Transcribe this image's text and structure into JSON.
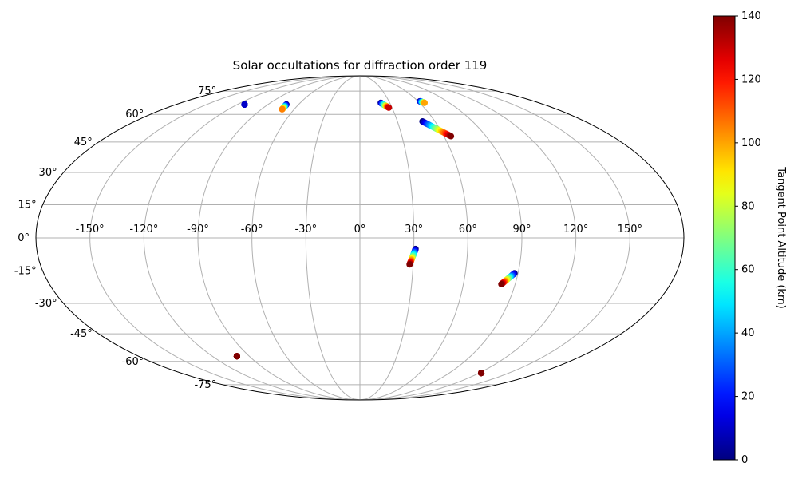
{
  "chart_data": {
    "type": "scatter",
    "projection": "mollweide",
    "title": "Solar occultations for diffraction order 119",
    "xlabel": "",
    "ylabel": "",
    "xlim": [
      -180,
      180
    ],
    "ylim": [
      -90,
      90
    ],
    "grid": true,
    "x_ticks": [
      "-150°",
      "-120°",
      "-90°",
      "-60°",
      "-30°",
      "0°",
      "30°",
      "60°",
      "90°",
      "120°",
      "150°"
    ],
    "x_tick_values": [
      -150,
      -120,
      -90,
      -60,
      -30,
      0,
      30,
      60,
      90,
      120,
      150
    ],
    "y_ticks": [
      "-75°",
      "-60°",
      "-45°",
      "-30°",
      "-15°",
      "0°",
      "15°",
      "30°",
      "45°",
      "60°",
      "75°"
    ],
    "y_tick_values": [
      -75,
      -60,
      -45,
      -30,
      -15,
      0,
      15,
      30,
      45,
      60,
      75
    ],
    "colorbar": {
      "label": "Tangent Point Altitude (km)",
      "colormap": "jet",
      "range": [
        0,
        140
      ],
      "ticks": [
        "0",
        "20",
        "40",
        "60",
        "80",
        "100",
        "120",
        "140"
      ],
      "tick_values": [
        0,
        20,
        40,
        60,
        80,
        100,
        120,
        140
      ]
    },
    "occultations": [
      {
        "lon_start": -113,
        "lat_start": 66,
        "lon_end": -113,
        "lat_end": 66,
        "alt_start": 0,
        "alt_end": 10
      },
      {
        "lon_start": -72,
        "lat_start": 66,
        "lon_end": -71,
        "lat_end": 63,
        "alt_start": 0,
        "alt_end": 105
      },
      {
        "lon_start": 21,
        "lat_start": 67,
        "lon_end": 27,
        "lat_end": 64,
        "alt_start": 0,
        "alt_end": 130
      },
      {
        "lon_start": 62,
        "lat_start": 68,
        "lon_end": 65,
        "lat_end": 67,
        "alt_start": 0,
        "alt_end": 100
      },
      {
        "lon_start": 50,
        "lat_start": 56,
        "lon_end": 65,
        "lat_end": 48,
        "alt_start": 0,
        "alt_end": 140
      },
      {
        "lon_start": 31,
        "lat_start": -5,
        "lon_end": 28,
        "lat_end": -12,
        "alt_start": 0,
        "alt_end": 140
      },
      {
        "lon_start": 88,
        "lat_start": -16,
        "lon_end": 82,
        "lat_end": -21,
        "alt_start": 0,
        "alt_end": 140
      },
      {
        "lon_start": -100,
        "lat_start": -57,
        "lon_end": -100,
        "lat_end": -57,
        "alt_start": 130,
        "alt_end": 140
      },
      {
        "lon_start": 122,
        "lat_start": -67,
        "lon_end": 122,
        "lat_end": -67,
        "alt_start": 130,
        "alt_end": 140
      }
    ]
  }
}
